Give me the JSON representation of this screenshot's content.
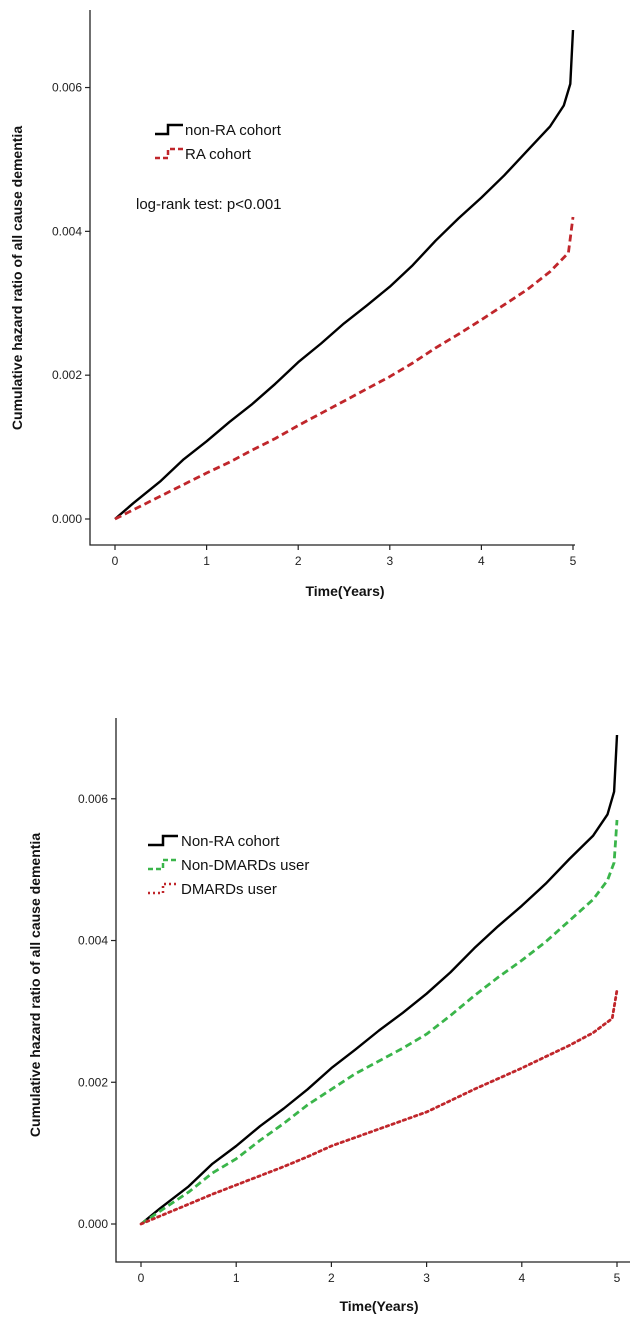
{
  "chart_data": [
    {
      "type": "line",
      "title": "",
      "xlabel": "Time(Years)",
      "ylabel": "Cumulative hazard ratio of all cause dementia",
      "xlim": [
        0,
        5
      ],
      "ylim": [
        0,
        0.0068
      ],
      "x_ticks": [
        "0",
        "1",
        "2",
        "3",
        "4",
        "5"
      ],
      "y_ticks": [
        "0.000",
        "0.002",
        "0.004",
        "0.006"
      ],
      "annotation": "log-rank test: p<0.001",
      "legend_position": "upper-left",
      "series": [
        {
          "name": "non-RA cohort",
          "color": "#000000",
          "style": "solid",
          "x": [
            0,
            0.2,
            0.5,
            0.75,
            1,
            1.25,
            1.5,
            1.75,
            2,
            2.25,
            2.5,
            2.75,
            3,
            3.25,
            3.5,
            3.75,
            4,
            4.25,
            4.5,
            4.75,
            4.9,
            4.97,
            5
          ],
          "y": [
            0,
            0.00022,
            0.00053,
            0.00083,
            0.00108,
            0.00135,
            0.0016,
            0.00188,
            0.00218,
            0.00244,
            0.00272,
            0.00297,
            0.00323,
            0.00353,
            0.00387,
            0.00418,
            0.00447,
            0.00478,
            0.00512,
            0.00546,
            0.00575,
            0.00605,
            0.0068
          ]
        },
        {
          "name": "RA cohort",
          "color": "#c0262b",
          "style": "dashed",
          "x": [
            0,
            0.25,
            0.5,
            0.75,
            1,
            1.25,
            1.5,
            1.75,
            2,
            2.25,
            2.5,
            2.75,
            3,
            3.25,
            3.5,
            3.75,
            4,
            4.25,
            4.5,
            4.75,
            4.95,
            5
          ],
          "y": [
            0,
            0.00016,
            0.00032,
            0.00048,
            0.00064,
            0.00079,
            0.00096,
            0.00112,
            0.0013,
            0.00147,
            0.00164,
            0.00181,
            0.00198,
            0.00217,
            0.00238,
            0.00257,
            0.00277,
            0.00298,
            0.00319,
            0.00344,
            0.0037,
            0.0042
          ]
        }
      ]
    },
    {
      "type": "line",
      "title": "",
      "xlabel": "Time(Years)",
      "ylabel": "Cumulative hazard ratio of all cause dementia",
      "xlim": [
        0,
        5
      ],
      "ylim": [
        0,
        0.0069
      ],
      "x_ticks": [
        "0",
        "1",
        "2",
        "3",
        "4",
        "5"
      ],
      "y_ticks": [
        "0.000",
        "0.002",
        "0.004",
        "0.006"
      ],
      "legend_position": "upper-left",
      "series": [
        {
          "name": "Non-RA cohort",
          "color": "#000000",
          "style": "solid",
          "x": [
            0,
            0.2,
            0.5,
            0.75,
            1,
            1.25,
            1.5,
            1.75,
            2,
            2.25,
            2.5,
            2.75,
            3,
            3.25,
            3.5,
            3.75,
            4,
            4.25,
            4.5,
            4.75,
            4.9,
            4.97,
            5
          ],
          "y": [
            0,
            0.00022,
            0.00053,
            0.00085,
            0.0011,
            0.00138,
            0.00163,
            0.0019,
            0.0022,
            0.00246,
            0.00273,
            0.00298,
            0.00325,
            0.00355,
            0.00389,
            0.0042,
            0.00449,
            0.0048,
            0.00515,
            0.00548,
            0.00578,
            0.0061,
            0.0069
          ]
        },
        {
          "name": "Non-DMARDs user",
          "color": "#3ab54a",
          "style": "dashed",
          "x": [
            0,
            0.2,
            0.5,
            0.75,
            1,
            1.25,
            1.5,
            1.75,
            2,
            2.25,
            2.5,
            2.75,
            3,
            3.25,
            3.5,
            3.75,
            4,
            4.25,
            4.5,
            4.75,
            4.9,
            4.97,
            5
          ],
          "y": [
            0,
            0.00018,
            0.00045,
            0.00072,
            0.00092,
            0.00118,
            0.00142,
            0.00168,
            0.0019,
            0.00212,
            0.0023,
            0.00248,
            0.00268,
            0.00294,
            0.00322,
            0.00348,
            0.00372,
            0.00398,
            0.00428,
            0.00458,
            0.00485,
            0.0051,
            0.0057
          ]
        },
        {
          "name": "DMARDs user",
          "color": "#c0262b",
          "style": "dotted",
          "x": [
            0,
            0.25,
            0.5,
            0.75,
            1,
            1.25,
            1.5,
            1.75,
            2,
            2.25,
            2.5,
            2.75,
            3,
            3.25,
            3.5,
            3.75,
            4,
            4.25,
            4.5,
            4.75,
            4.95,
            5
          ],
          "y": [
            0,
            0.00014,
            0.00028,
            0.00042,
            0.00055,
            0.00068,
            0.00081,
            0.00095,
            0.0011,
            0.00122,
            0.00134,
            0.00146,
            0.00158,
            0.00174,
            0.0019,
            0.00205,
            0.0022,
            0.00236,
            0.00252,
            0.0027,
            0.0029,
            0.0033
          ]
        }
      ]
    }
  ]
}
